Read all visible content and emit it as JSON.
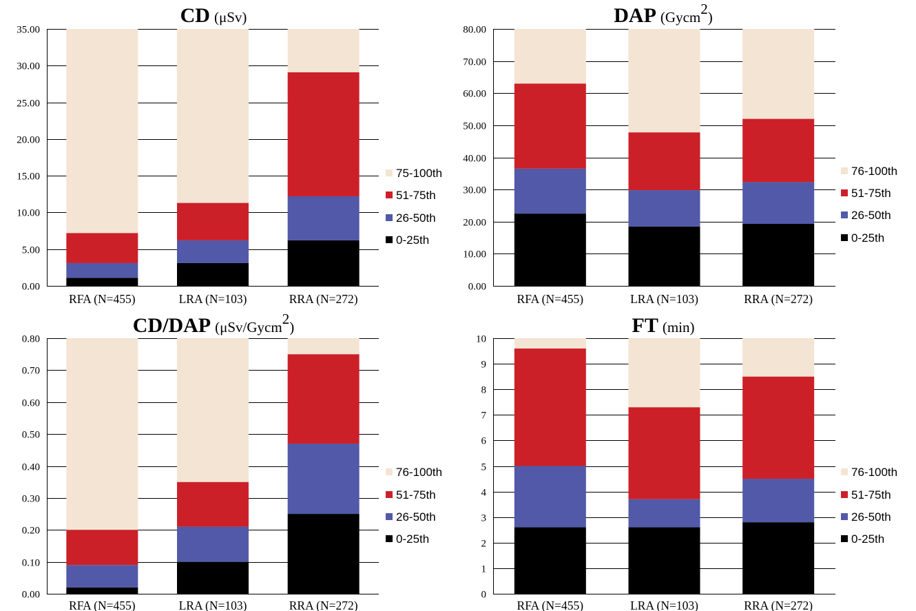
{
  "chart_data": [
    {
      "type": "bar",
      "stacked": true,
      "title": "CD",
      "title_unit": "(μSv)",
      "categories": [
        "RFA (N=455)",
        "LRA (N=103)",
        "RRA (N=272)"
      ],
      "ylim": [
        0,
        35
      ],
      "ytick_step": 5,
      "ytick_labels": [
        "0.00",
        "5.00",
        "10.00",
        "15.00",
        "20.00",
        "25.00",
        "30.00",
        "35.00"
      ],
      "grid": true,
      "legend_position": "right",
      "series": [
        {
          "name": "0-25th",
          "color": "#000000",
          "values": [
            1.1,
            3.1,
            6.2
          ]
        },
        {
          "name": "26-50th",
          "color": "#5159a8",
          "values": [
            2.0,
            3.1,
            6.0
          ]
        },
        {
          "name": "51-75th",
          "color": "#cc2029",
          "values": [
            4.1,
            5.1,
            16.9
          ]
        },
        {
          "name": "75-100th",
          "color": "#f4e4d3",
          "values": [
            27.8,
            23.7,
            5.9
          ]
        }
      ]
    },
    {
      "type": "bar",
      "stacked": true,
      "title": "DAP",
      "title_unit": "(Gycm",
      "title_unit_sup": "2",
      "title_unit_end": ")",
      "categories": [
        "RFA (N=455)",
        "LRA (N=103)",
        "RRA (N=272)"
      ],
      "ylim": [
        0,
        80
      ],
      "ytick_step": 10,
      "ytick_labels": [
        "0.00",
        "10.00",
        "20.00",
        "30.00",
        "40.00",
        "50.00",
        "60.00",
        "70.00",
        "80.00"
      ],
      "grid": true,
      "legend_position": "right",
      "series": [
        {
          "name": "0-25th",
          "color": "#000000",
          "values": [
            22.5,
            18.5,
            19.3
          ]
        },
        {
          "name": "26-50th",
          "color": "#5159a8",
          "values": [
            14.0,
            11.3,
            13.0
          ]
        },
        {
          "name": "51-75th",
          "color": "#cc2029",
          "values": [
            26.5,
            18.0,
            19.7
          ]
        },
        {
          "name": "76-100th",
          "color": "#f4e4d3",
          "values": [
            17.0,
            32.2,
            28.0
          ]
        }
      ]
    },
    {
      "type": "bar",
      "stacked": true,
      "title": "CD/DAP",
      "title_unit": "(μSv/Gycm",
      "title_unit_sup": "2",
      "title_unit_end": ")",
      "categories": [
        "RFA (N=455)",
        "LRA (N=103)",
        "RRA (N=272)"
      ],
      "ylim": [
        0,
        0.8
      ],
      "ytick_step": 0.1,
      "ytick_labels": [
        "0.00",
        "0.10",
        "0.20",
        "0.30",
        "0.40",
        "0.50",
        "0.60",
        "0.70",
        "0.80"
      ],
      "grid": true,
      "legend_position": "right",
      "series": [
        {
          "name": "0-25th",
          "color": "#000000",
          "values": [
            0.02,
            0.1,
            0.25
          ]
        },
        {
          "name": "26-50th",
          "color": "#5159a8",
          "values": [
            0.07,
            0.11,
            0.22
          ]
        },
        {
          "name": "51-75th",
          "color": "#cc2029",
          "values": [
            0.11,
            0.14,
            0.28
          ]
        },
        {
          "name": "76-100th",
          "color": "#f4e4d3",
          "values": [
            0.6,
            0.45,
            0.05
          ]
        }
      ]
    },
    {
      "type": "bar",
      "stacked": true,
      "title": "FT",
      "title_unit": "(min)",
      "categories": [
        "RFA (N=455)",
        "LRA (N=103)",
        "RRA (N=272)"
      ],
      "ylim": [
        0,
        10
      ],
      "ytick_step": 1,
      "ytick_labels": [
        "0",
        "1",
        "2",
        "3",
        "4",
        "5",
        "6",
        "7",
        "8",
        "9",
        "10"
      ],
      "grid": true,
      "legend_position": "right",
      "series": [
        {
          "name": "0-25th",
          "color": "#000000",
          "values": [
            2.6,
            2.6,
            2.8
          ]
        },
        {
          "name": "26-50th",
          "color": "#5159a8",
          "values": [
            2.4,
            1.1,
            1.7
          ]
        },
        {
          "name": "51-75th",
          "color": "#cc2029",
          "values": [
            4.6,
            3.6,
            4.0
          ]
        },
        {
          "name": "76-100th",
          "color": "#f4e4d3",
          "values": [
            0.4,
            2.7,
            1.5
          ]
        }
      ]
    }
  ]
}
